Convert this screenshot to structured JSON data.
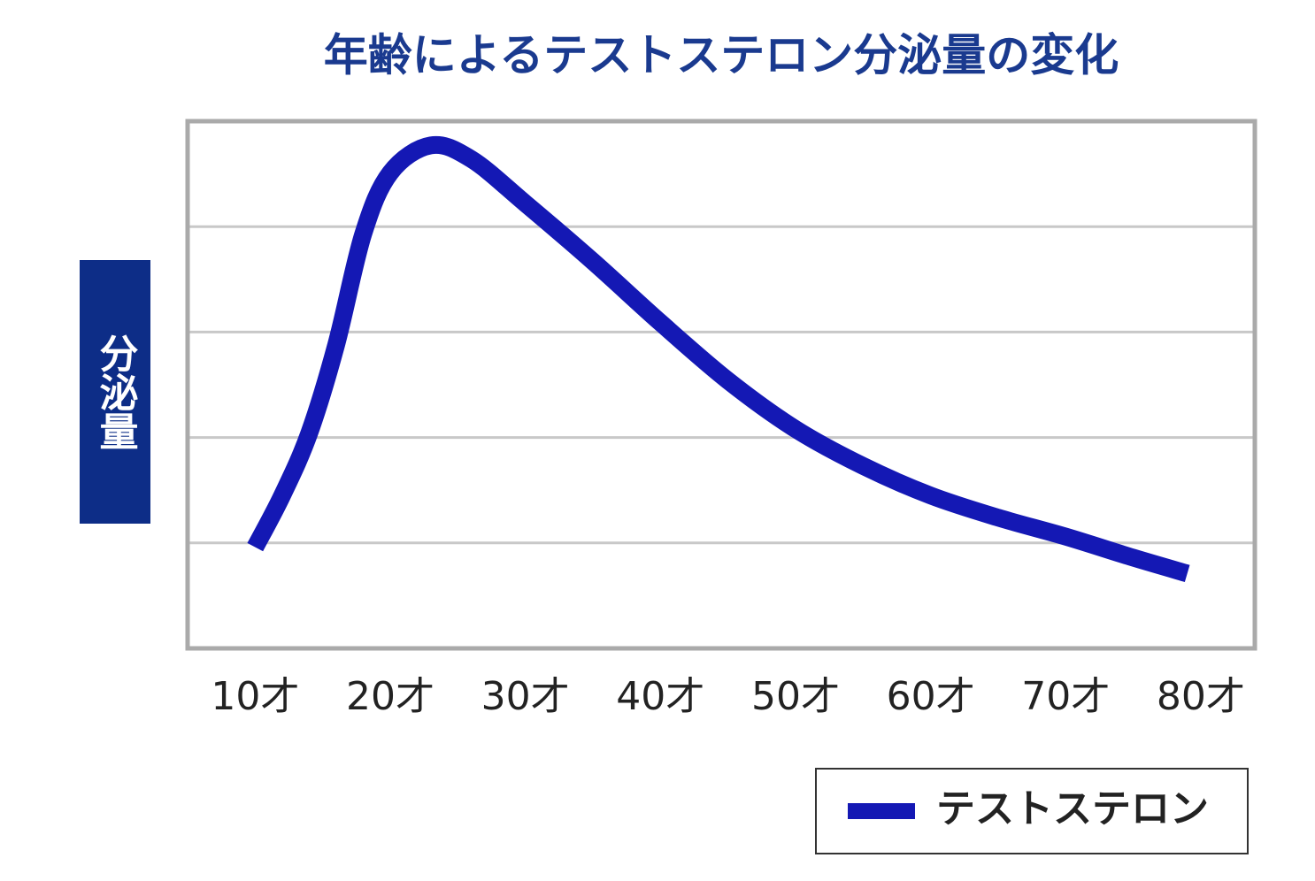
{
  "chart_data": {
    "type": "line",
    "title": "年齢によるテストステロン分泌量の変化",
    "y_label": "分泌量",
    "x": [
      10,
      12,
      14,
      16,
      18,
      20,
      23,
      26,
      30,
      35,
      40,
      45,
      50,
      55,
      60,
      65,
      70,
      75,
      79
    ],
    "series": [
      {
        "name": "テストステロン",
        "color": "#1418b4",
        "values": [
          0.96,
          1.45,
          2.04,
          2.88,
          3.93,
          4.51,
          4.77,
          4.64,
          4.22,
          3.67,
          3.09,
          2.54,
          2.08,
          1.73,
          1.45,
          1.24,
          1.06,
          0.86,
          0.71
        ]
      }
    ],
    "xlim": [
      5,
      84
    ],
    "xticks": [
      {
        "value": 10,
        "label": "10才"
      },
      {
        "value": 20,
        "label": "20才"
      },
      {
        "value": 30,
        "label": "30才"
      },
      {
        "value": 40,
        "label": "40才"
      },
      {
        "value": 50,
        "label": "50才"
      },
      {
        "value": 60,
        "label": "60才"
      },
      {
        "value": 70,
        "label": "70才"
      },
      {
        "value": 80,
        "label": "80才"
      }
    ],
    "ylim": [
      0,
      5
    ],
    "yticks": [
      0,
      1,
      2,
      3,
      4,
      5
    ],
    "grid": true
  }
}
